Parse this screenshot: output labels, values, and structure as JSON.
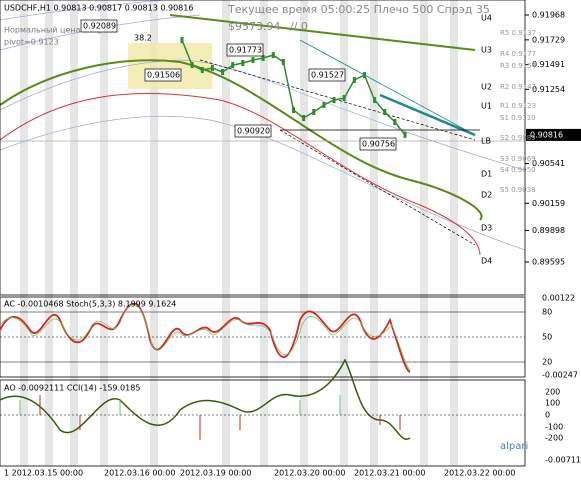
{
  "chart_data": {
    "type": "line",
    "title": "USDCHF,H1 0.90813 0.90817 0.90813 0.90816",
    "ylim": [
      0.89278,
      0.92112
    ],
    "yticks": [
      0.91968,
      0.91729,
      0.91491,
      0.91254,
      0.90541,
      0.90159,
      0.89898,
      0.89595
    ],
    "current_price": 0.90816,
    "color": "#2e8b2e",
    "series": [
      {
        "color": "#2e8b2e",
        "values": [
          0.91728,
          0.91487,
          0.91439,
          0.91459,
          0.9142,
          0.91487,
          0.91507,
          0.91535,
          0.91555,
          0.91583,
          0.91516,
          0.91055,
          0.90978,
          0.91036,
          0.91103,
          0.91151,
          0.9117,
          0.91343,
          0.91391,
          0.91151,
          0.91036,
          0.9094,
          0.90816
        ]
      }
    ]
  },
  "header": {
    "note": "Нормальный цена вопроса",
    "pivot": "pivot=0.9123",
    "status": "Текущее время 05:00:25 Плечо 500 Спрэд 35",
    "balance": "$9573.94",
    "orders": "// 0"
  },
  "annotations": [
    "0.92089",
    "38.2",
    "0.91506",
    "0.91773",
    "0.91527",
    "0.90920",
    "0.90756"
  ],
  "levels": [
    "U4",
    "U3",
    "U2",
    "U1",
    "LB",
    "D1",
    "D2",
    "D3",
    "D4"
  ],
  "pivots": [
    "R5 0.9137",
    "R4 0.9177",
    "R3 0.9154",
    "R2 0.9143",
    "R1 0.9123",
    "S1 0.9110",
    "S2 0.9089",
    "S3 0.9069",
    "S4 0.9050",
    "S5 0.9038"
  ],
  "ac_panel": {
    "label": "AC -0.0010468 Stoch(5,3,3) 8.1999 9.1624",
    "axis_labels": [
      "0.00122",
      "80",
      "50",
      "20",
      "-0.00247"
    ]
  },
  "ao_panel": {
    "label": "AO -0.0092111 CCI(14) -159.0185",
    "axis_labels": [
      "200",
      "100",
      "0",
      "-100",
      "-200",
      "-0.00711"
    ]
  },
  "dates": [
    "1 2012.03.15 00:00",
    "2012.03.16 00:00",
    "2012.03.19 00:00",
    "2012.03.20 00:00",
    "2012.03.21 00:00",
    "2012.03.22 00:00"
  ],
  "brand": "alpari"
}
